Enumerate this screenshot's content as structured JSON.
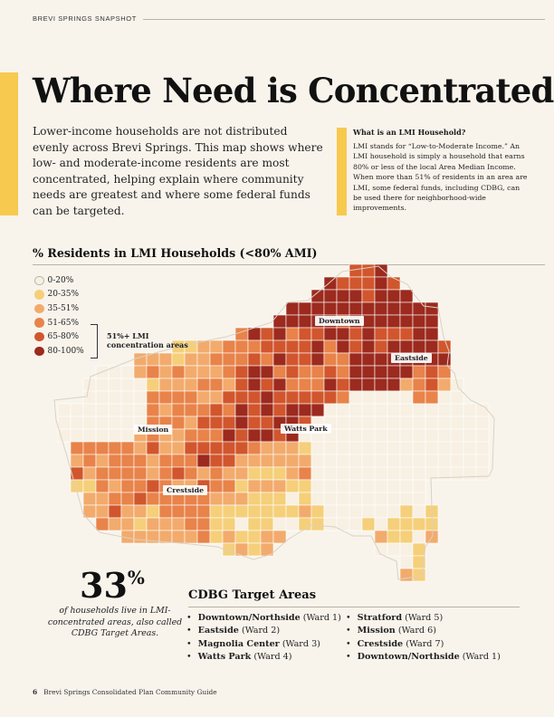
{
  "header": {
    "label": "BREVI SPRINGS SNAPSHOT"
  },
  "title": "Where Need is Concentrated",
  "intro": "Lower-income households are not distributed evenly across Brevi Springs. This map shows where low- and moderate-income residents are most concentrated, helping explain where community needs are greatest and where some federal funds can be targeted.",
  "sidebar": {
    "title": "What is an LMI Household?",
    "body": "LMI stands for “Low-to-Moderate Income.” An LMI household is simply a household that earns 80% or less of the local Area Median Income. When more than 51% of residents in an area are LMI, some federal funds, including CDBG, can be used there for neighborhood-wide improvements."
  },
  "map": {
    "heading": "% Residents in LMI Households (<80% AMI)",
    "legend": [
      {
        "label": "0-20%",
        "color": "#f7f0e3"
      },
      {
        "label": "20-35%",
        "color": "#f5cf7a"
      },
      {
        "label": "35-51%",
        "color": "#f2ab6c"
      },
      {
        "label": "51-65%",
        "color": "#e8834a"
      },
      {
        "label": "65-80%",
        "color": "#d1562d"
      },
      {
        "label": "80-100%",
        "color": "#9c2a1e"
      }
    ],
    "legend_note": "51%+ LMI concentration areas",
    "labels": {
      "downtown": "Downtown",
      "eastside": "Eastside",
      "mission": "Mission",
      "watts_park": "Watts Park",
      "crestside": "Crestside"
    }
  },
  "stat": {
    "value": "33",
    "unit": "%",
    "caption": "of households live in LMI-concentrated areas, also called CDBG Target Areas."
  },
  "cdbg": {
    "heading": "CDBG Target Areas",
    "col1": [
      {
        "name": "Downtown/Northside",
        "ward": "(Ward 1)"
      },
      {
        "name": "Eastside",
        "ward": "(Ward 2)"
      },
      {
        "name": "Magnolia Center",
        "ward": "(Ward 3)"
      },
      {
        "name": "Watts Park",
        "ward": "(Ward 4)"
      }
    ],
    "col2": [
      {
        "name": "Stratford",
        "ward": "(Ward 5)"
      },
      {
        "name": "Mission",
        "ward": "(Ward 6)"
      },
      {
        "name": "Crestside",
        "ward": "(Ward 7)"
      },
      {
        "name": "Downtown/Northside",
        "ward": "(Ward 1)"
      }
    ]
  },
  "footer": {
    "page": "6",
    "text": "Brevi Springs Consolidated Plan Community Guide"
  }
}
